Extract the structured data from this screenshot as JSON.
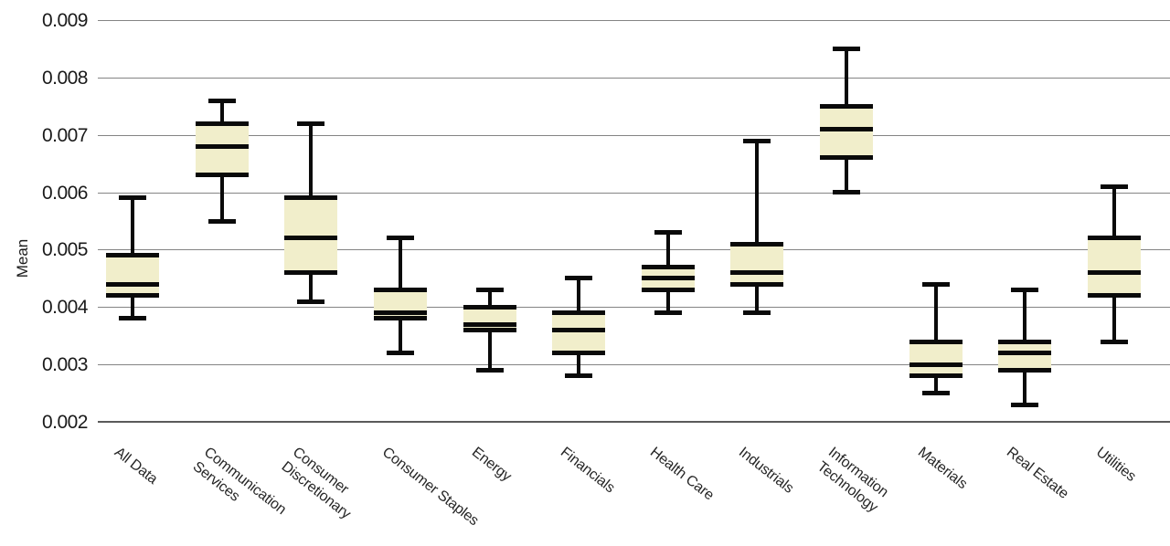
{
  "chart_data": {
    "type": "box",
    "title": "",
    "xlabel": "",
    "ylabel": "Mean",
    "ylim": [
      0.002,
      0.009
    ],
    "yticks": [
      0.009,
      0.008,
      0.007,
      0.006,
      0.005,
      0.004,
      0.003,
      0.002
    ],
    "grid": true,
    "legend": "none",
    "categories": [
      "All Data",
      "Communication Services",
      "Consumer Discretionary",
      "Consumer Staples",
      "Energy",
      "Financials",
      "Health Care",
      "Industrials",
      "Information Technology",
      "Materials",
      "Real Estate",
      "Utilities"
    ],
    "boxes": [
      {
        "category": "All Data",
        "lines": [
          "All Data"
        ],
        "whisker_low": 0.0038,
        "q1": 0.0042,
        "median": 0.0044,
        "q3": 0.0049,
        "whisker_high": 0.0059
      },
      {
        "category": "Communication Services",
        "lines": [
          "Communication",
          "Services"
        ],
        "whisker_low": 0.0055,
        "q1": 0.0063,
        "median": 0.0068,
        "q3": 0.0072,
        "whisker_high": 0.0076
      },
      {
        "category": "Consumer Discretionary",
        "lines": [
          "Consumer",
          "Discretionary"
        ],
        "whisker_low": 0.0041,
        "q1": 0.0046,
        "median": 0.0052,
        "q3": 0.0059,
        "whisker_high": 0.0072
      },
      {
        "category": "Consumer Staples",
        "lines": [
          "Consumer Staples"
        ],
        "whisker_low": 0.0032,
        "q1": 0.0038,
        "median": 0.0039,
        "q3": 0.0043,
        "whisker_high": 0.0052
      },
      {
        "category": "Energy",
        "lines": [
          "Energy"
        ],
        "whisker_low": 0.0029,
        "q1": 0.0036,
        "median": 0.0037,
        "q3": 0.004,
        "whisker_high": 0.0043
      },
      {
        "category": "Financials",
        "lines": [
          "Financials"
        ],
        "whisker_low": 0.0028,
        "q1": 0.0032,
        "median": 0.0036,
        "q3": 0.0039,
        "whisker_high": 0.0045
      },
      {
        "category": "Health Care",
        "lines": [
          "Health Care"
        ],
        "whisker_low": 0.0039,
        "q1": 0.0043,
        "median": 0.0045,
        "q3": 0.0047,
        "whisker_high": 0.0053
      },
      {
        "category": "Industrials",
        "lines": [
          "Industrials"
        ],
        "whisker_low": 0.0039,
        "q1": 0.0044,
        "median": 0.0046,
        "q3": 0.0051,
        "whisker_high": 0.0069
      },
      {
        "category": "Information Technology",
        "lines": [
          "Information",
          "Technology"
        ],
        "whisker_low": 0.006,
        "q1": 0.0066,
        "median": 0.0071,
        "q3": 0.0075,
        "whisker_high": 0.0085
      },
      {
        "category": "Materials",
        "lines": [
          "Materials"
        ],
        "whisker_low": 0.0025,
        "q1": 0.0028,
        "median": 0.003,
        "q3": 0.0034,
        "whisker_high": 0.0044
      },
      {
        "category": "Real Estate",
        "lines": [
          "Real Estate"
        ],
        "whisker_low": 0.0023,
        "q1": 0.0029,
        "median": 0.0032,
        "q3": 0.0034,
        "whisker_high": 0.0043
      },
      {
        "category": "Utilities",
        "lines": [
          "Utilities"
        ],
        "whisker_low": 0.0034,
        "q1": 0.0042,
        "median": 0.0046,
        "q3": 0.0052,
        "whisker_high": 0.0061
      }
    ]
  },
  "style": {
    "box_fill": "#f1eecb",
    "line_color": "#0a0a0a",
    "grid_color": "#848484",
    "axis_color": "#5a5a5a",
    "text_color": "#1a1a1a"
  }
}
